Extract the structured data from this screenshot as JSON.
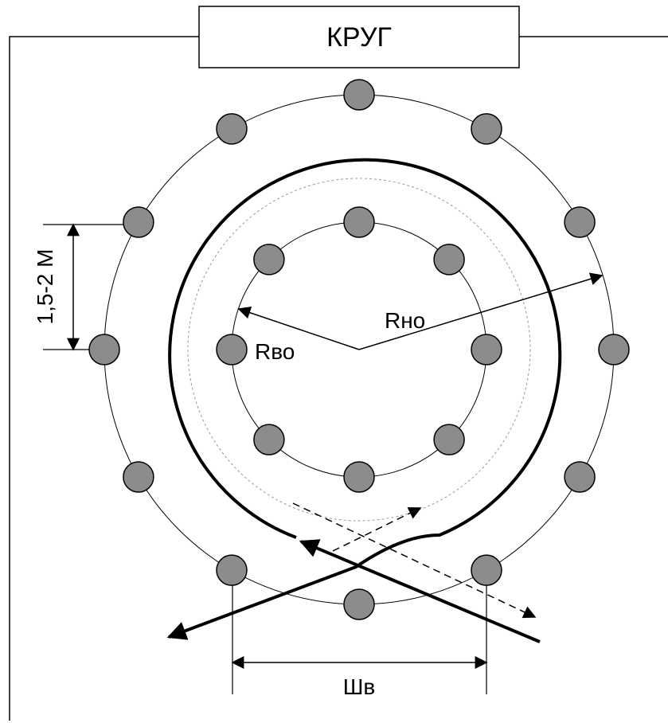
{
  "title": "КРУГ",
  "labels": {
    "outer_radius": "Rно",
    "inner_radius": "Rво",
    "spacing": "1,5-2 М",
    "width": "Шв"
  },
  "colors": {
    "line": "#000000",
    "cone_fill": "#8c8c8c",
    "guide_dashed": "#999999",
    "background": "#ffffff"
  },
  "cones": {
    "outer_count": 12,
    "inner_count": 8
  }
}
